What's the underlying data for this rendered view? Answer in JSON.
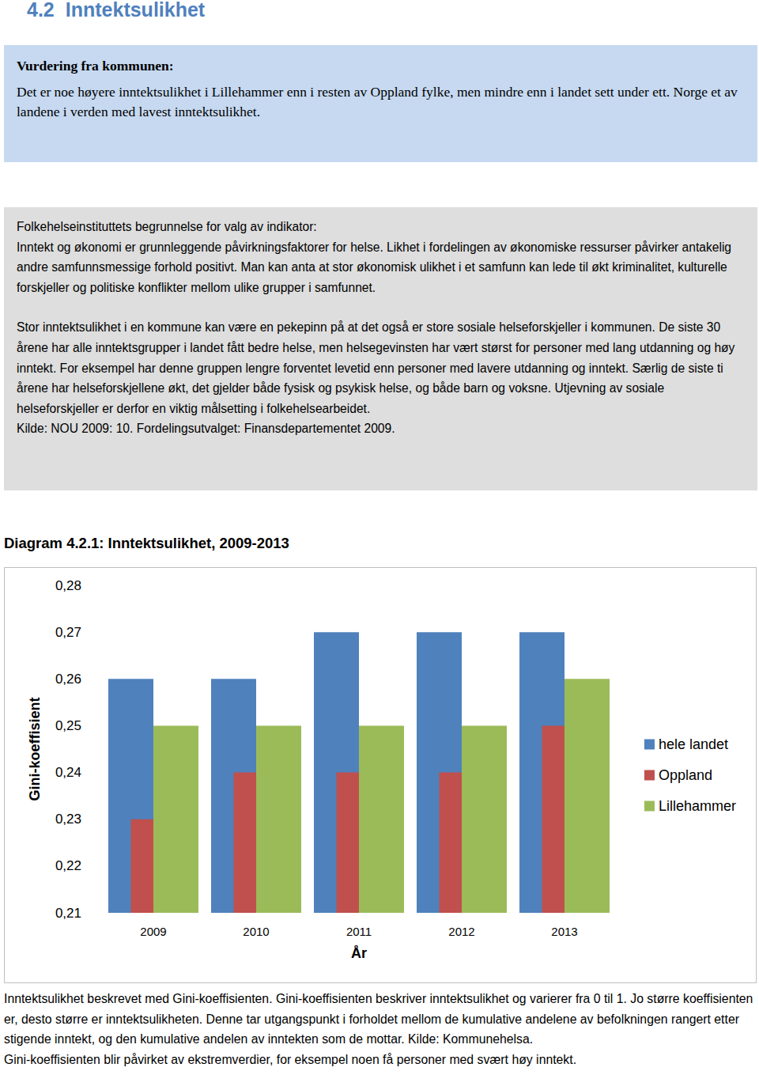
{
  "document": {
    "heading": {
      "number": "4.2",
      "title": "Inntektsulikhet"
    },
    "assessment": {
      "title": "Vurdering fra kommunen:",
      "text": "Det er noe høyere inntektsulikhet i Lillehammer enn i resten av Oppland fylke, men mindre enn i landet sett under ett. Norge et av landene i verden med lavest inntektsulikhet."
    },
    "rationale": {
      "title": "Folkehelseinstituttets begrunnelse for valg av indikator:",
      "paragraphs": [
        "Inntekt og økonomi er grunnleggende påvirkningsfaktorer for helse. Likhet i fordelingen av økonomiske ressurser påvirker antakelig andre samfunnsmessige forhold positivt. Man kan anta at stor økonomisk ulikhet i et samfunn kan lede til økt kriminalitet, kulturelle forskjeller og politiske konflikter mellom ulike grupper i samfunnet.",
        "Stor inntektsulikhet i en kommune kan være en pekepinn på at det også er store sosiale helseforskjeller i kommunen. De siste 30 årene har alle inntektsgrupper i landet fått bedre helse, men helsegevinsten har vært størst for personer med lang utdanning og høy inntekt. For eksempel har denne gruppen lengre forventet levetid enn personer med lavere utdanning og inntekt. Særlig de siste ti årene har helseforskjellene økt, det gjelder både fysisk og psykisk helse, og både barn og voksne. Utjevning av sosiale helseforskjeller er derfor en viktig målsetting i folkehelsearbeidet."
      ],
      "source": "Kilde: NOU 2009: 10. Fordelingsutvalget: Finansdepartementet 2009."
    },
    "caption": [
      "Inntektsulikhet beskrevet med Gini-koeffisienten. Gini-koeffisienten beskriver inntektsulikhet og varierer fra 0 til 1. Jo større koeffisienten er, desto større er inntektsulikheten. Denne tar utgangspunkt i forholdet mellom de kumulative andelene av befolkningen rangert etter stigende inntekt, og den kumulative andelen av inntekten som de mottar.  Kilde: Kommunehelsa.",
      "Gini-koeffisienten blir påvirket av ekstremverdier, for eksempel noen få personer med svært høy inntekt."
    ]
  },
  "chart_data": {
    "type": "bar",
    "title": "Diagram 4.2.1: Inntektsulikhet, 2009-2013",
    "x_label": "År",
    "y_label": "Gini-koeffisient",
    "categories": [
      "2009",
      "2010",
      "2011",
      "2012",
      "2013"
    ],
    "series": [
      {
        "name": "hele landet",
        "color": "#4f81bd",
        "values": [
          0.26,
          0.26,
          0.27,
          0.27,
          0.27
        ]
      },
      {
        "name": "Oppland",
        "color": "#c0504d",
        "values": [
          0.23,
          0.24,
          0.24,
          0.24,
          0.25
        ]
      },
      {
        "name": "Lillehammer",
        "color": "#9bbb59",
        "values": [
          0.25,
          0.25,
          0.25,
          0.25,
          0.26
        ]
      }
    ],
    "ylim": [
      0.21,
      0.28
    ],
    "yticks": [
      {
        "value": 0.21,
        "label": "0,21"
      },
      {
        "value": 0.22,
        "label": "0,22"
      },
      {
        "value": 0.23,
        "label": "0,23"
      },
      {
        "value": 0.24,
        "label": "0,24"
      },
      {
        "value": 0.25,
        "label": "0,25"
      },
      {
        "value": 0.26,
        "label": "0,26"
      },
      {
        "value": 0.27,
        "label": "0,27"
      },
      {
        "value": 0.28,
        "label": "0,28"
      }
    ],
    "grid": false,
    "legend": "right"
  }
}
